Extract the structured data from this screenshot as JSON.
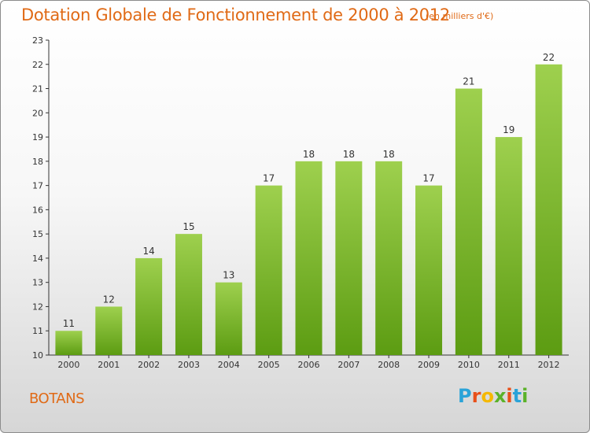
{
  "title": "Dotation Globale de Fonctionnement de 2000 à 2012",
  "subtitle": "(en milliers d'€)",
  "commune": "BOTANS",
  "logo": {
    "letters": [
      "P",
      "r",
      "o",
      "x",
      "i",
      "t",
      "i"
    ],
    "colors": [
      "#2aa3d8",
      "#e8501a",
      "#f5b800",
      "#5bb229",
      "#e8501a",
      "#2aa3d8",
      "#5bb229"
    ]
  },
  "colors": {
    "title": "#e06a16",
    "bar_top": "#9ed04e",
    "bar_bottom": "#5c9c12",
    "axis": "#333333"
  },
  "chart_data": {
    "type": "bar",
    "title": "Dotation Globale de Fonctionnement de 2000 à 2012",
    "subtitle": "(en milliers d'€)",
    "xlabel": "",
    "ylabel": "",
    "categories": [
      "2000",
      "2001",
      "2002",
      "2003",
      "2004",
      "2005",
      "2006",
      "2007",
      "2008",
      "2009",
      "2010",
      "2011",
      "2012"
    ],
    "values": [
      11,
      12,
      14,
      15,
      13,
      17,
      18,
      18,
      18,
      17,
      21,
      19,
      22
    ],
    "ylim": [
      10,
      23
    ],
    "yticks": [
      10,
      11,
      12,
      13,
      14,
      15,
      16,
      17,
      18,
      19,
      20,
      21,
      22,
      23
    ],
    "grid": false,
    "legend": "none"
  }
}
